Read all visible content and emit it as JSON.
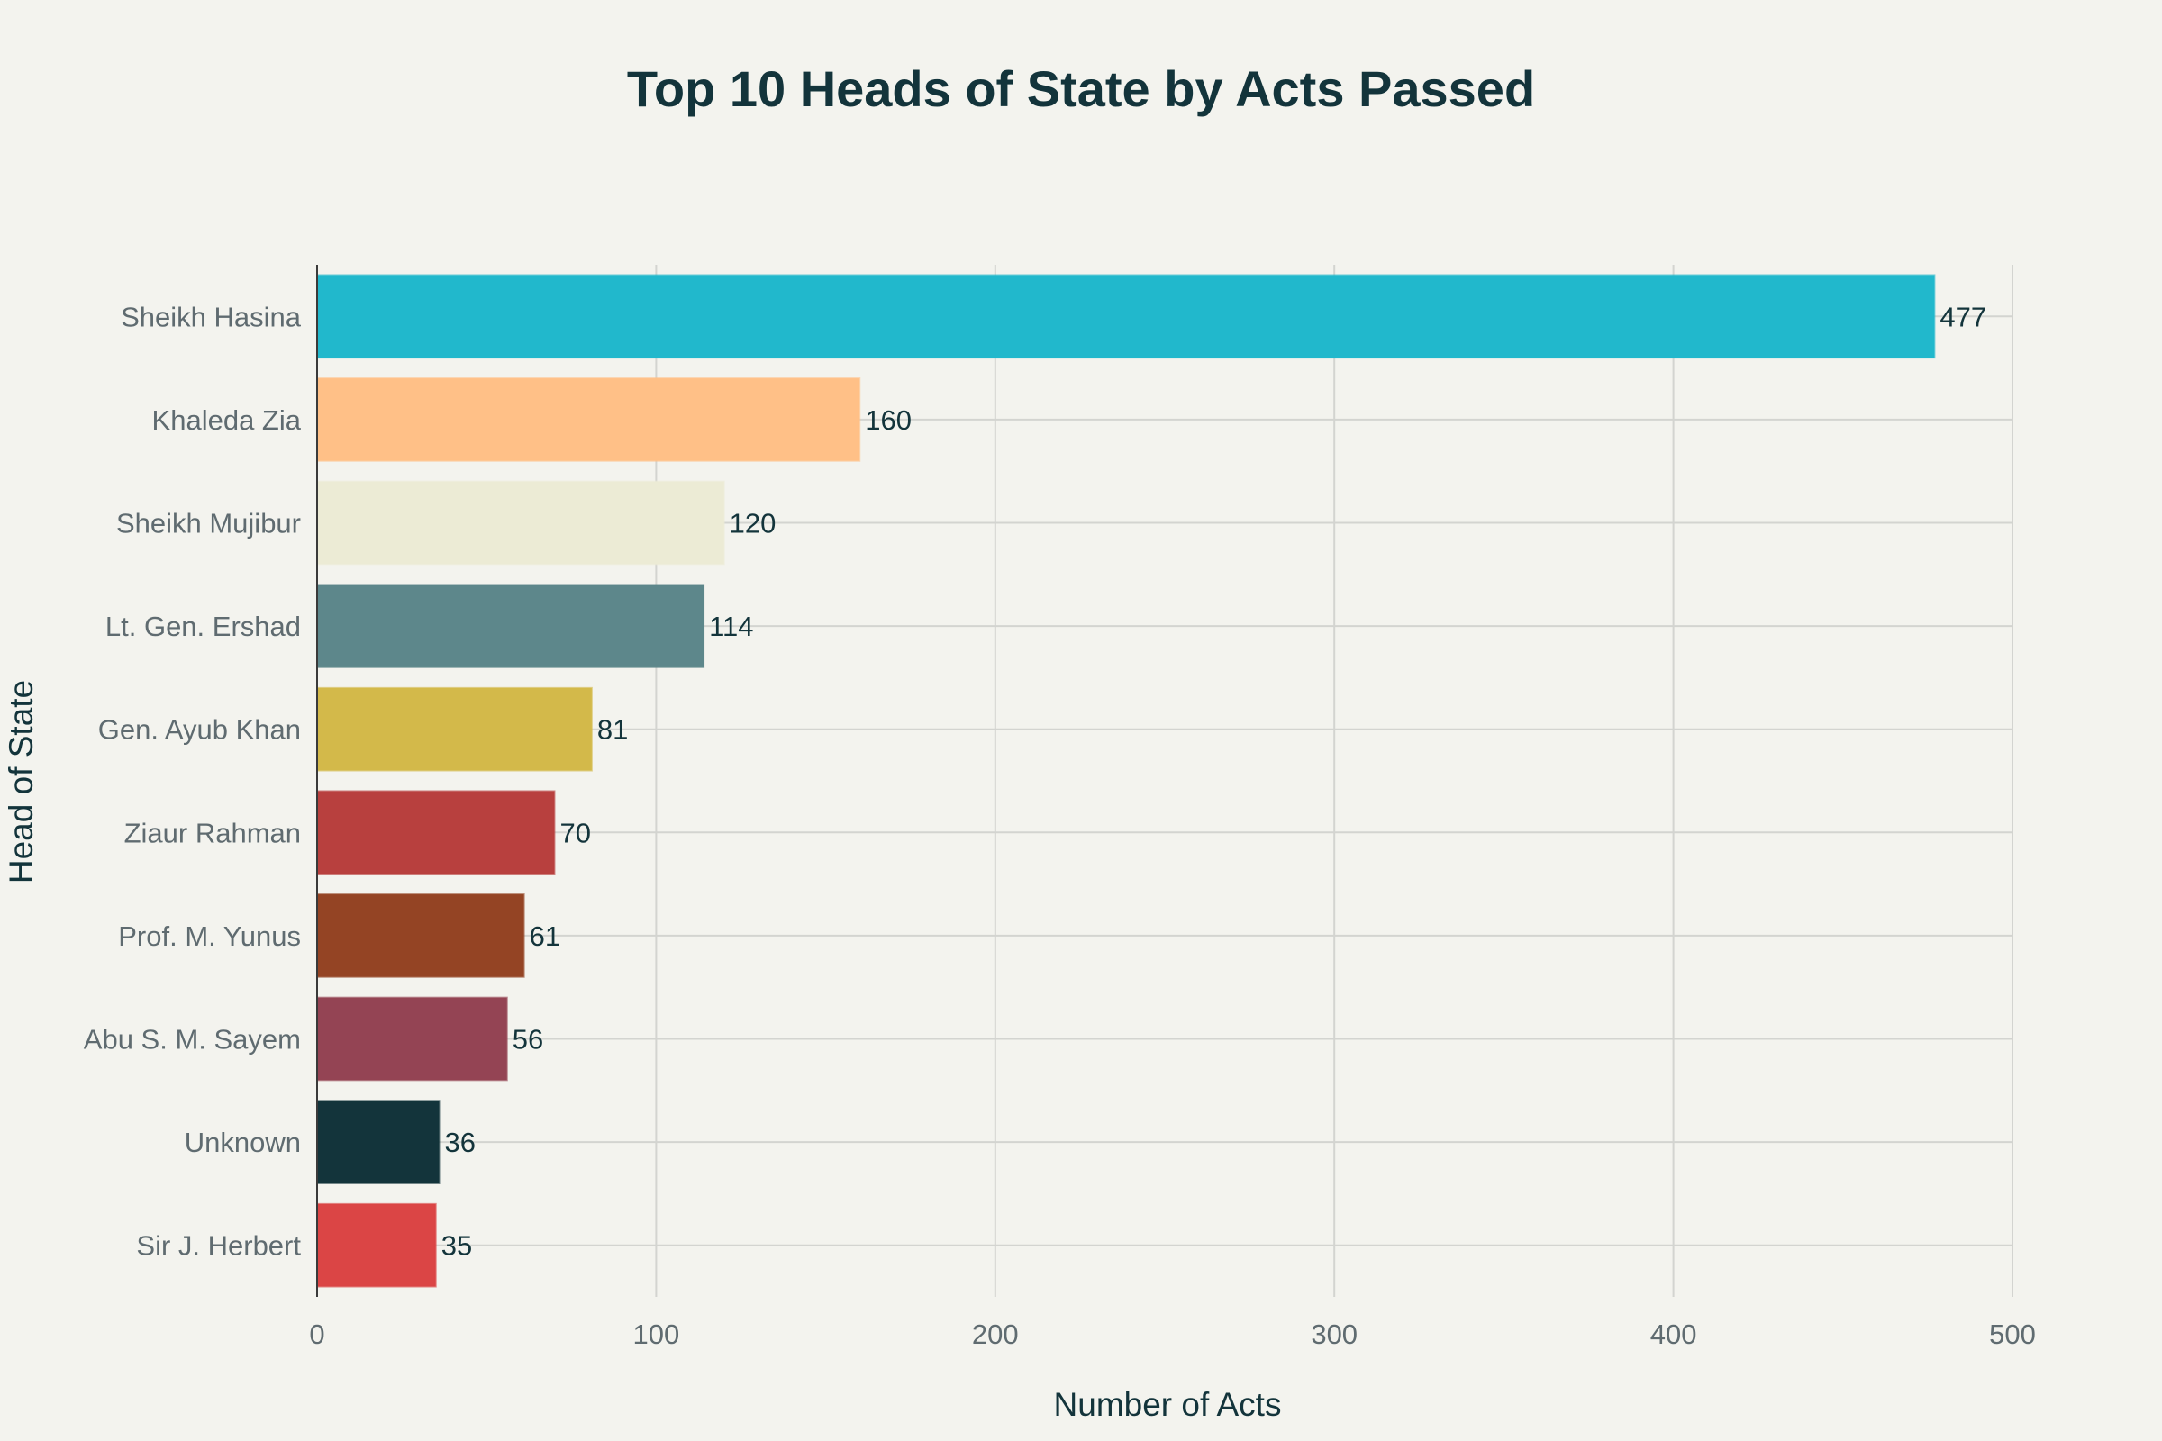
{
  "chart_data": {
    "type": "bar",
    "orientation": "horizontal",
    "title": "Top 10 Heads of State by Acts Passed",
    "xlabel": "Number of Acts",
    "ylabel": "Head of State",
    "xlim": [
      0,
      500
    ],
    "xticks": [
      0,
      100,
      200,
      300,
      400,
      500
    ],
    "grid": true,
    "categories": [
      "Sheikh Hasina",
      "Khaleda Zia",
      "Sheikh Mujibur",
      "Lt. Gen. Ershad",
      "Gen. Ayub Khan",
      "Ziaur Rahman",
      "Prof. M. Yunus",
      "Abu S. M. Sayem",
      "Unknown",
      "Sir J. Herbert"
    ],
    "values": [
      477,
      160,
      120,
      114,
      81,
      70,
      61,
      56,
      36,
      35
    ],
    "colors": [
      "#21b8cc",
      "#ffc087",
      "#ecebd5",
      "#5d878b",
      "#d3b94a",
      "#b8403e",
      "#944424",
      "#944454",
      "#13343b",
      "#db4545"
    ]
  }
}
